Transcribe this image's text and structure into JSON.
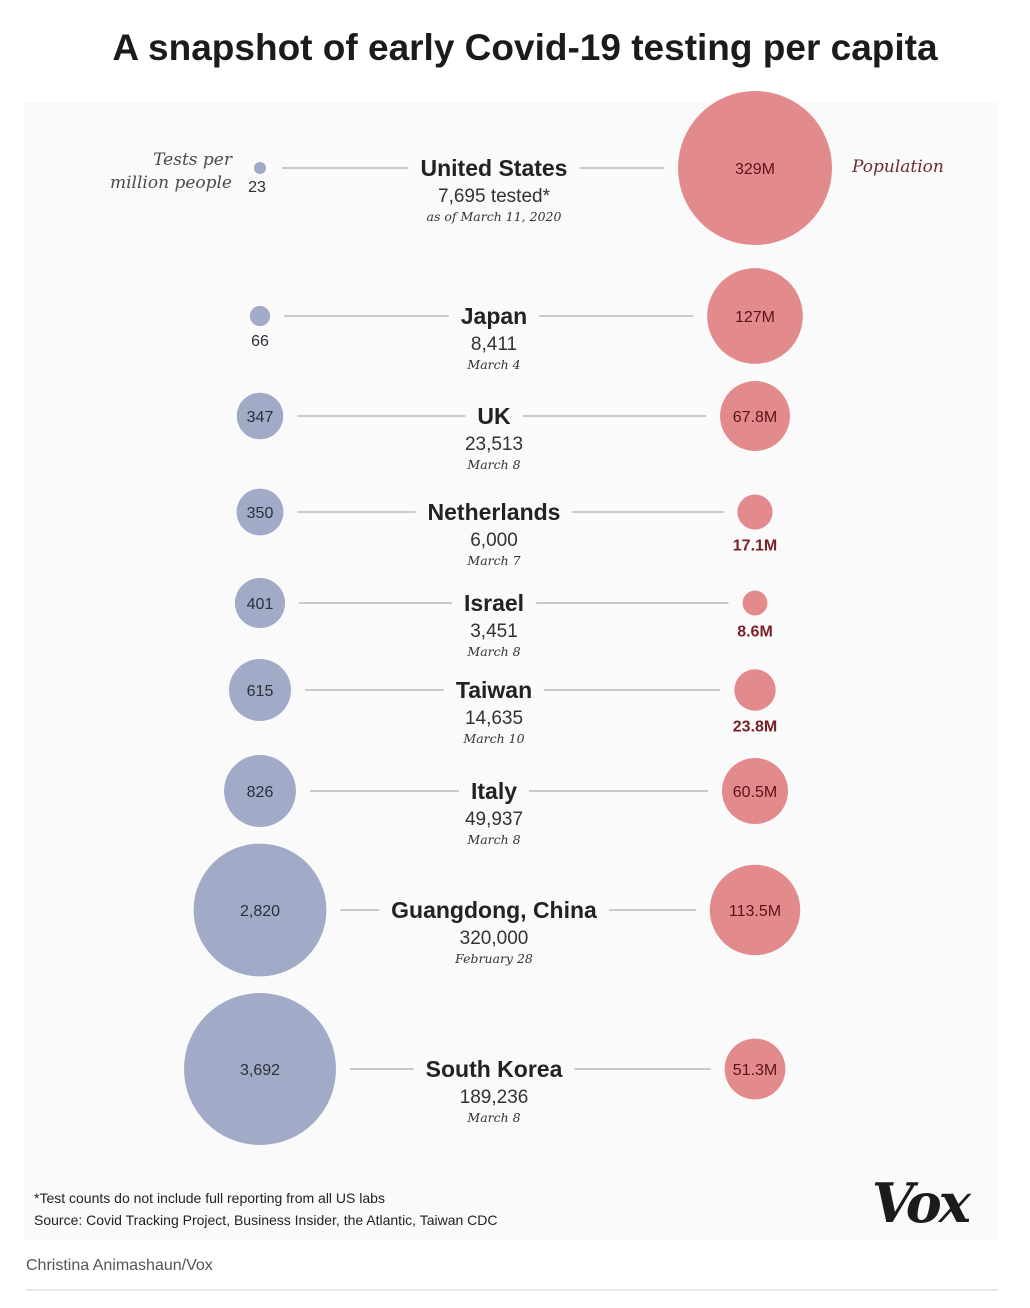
{
  "chart_data": {
    "type": "bubble",
    "title": "A snapshot of early Covid-19 testing per capita",
    "left_label": [
      "Tests per",
      "million people"
    ],
    "right_label": "Population",
    "rows": [
      {
        "name": "United States",
        "tested": "7,695 tested*",
        "date": "as of March 11, 2020",
        "tests_per_million": 23,
        "tpm_text": "23",
        "population_m": 329,
        "pop_text": "329M"
      },
      {
        "name": "Japan",
        "tested": "8,411",
        "date": "March 4",
        "tests_per_million": 66,
        "tpm_text": "66",
        "population_m": 127,
        "pop_text": "127M"
      },
      {
        "name": "UK",
        "tested": "23,513",
        "date": "March 8",
        "tests_per_million": 347,
        "tpm_text": "347",
        "population_m": 67.8,
        "pop_text": "67.8M"
      },
      {
        "name": "Netherlands",
        "tested": "6,000",
        "date": "March 7",
        "tests_per_million": 350,
        "tpm_text": "350",
        "population_m": 17.1,
        "pop_text": "17.1M"
      },
      {
        "name": "Israel",
        "tested": "3,451",
        "date": "March 8",
        "tests_per_million": 401,
        "tpm_text": "401",
        "population_m": 8.6,
        "pop_text": "8.6M"
      },
      {
        "name": "Taiwan",
        "tested": "14,635",
        "date": "March 10",
        "tests_per_million": 615,
        "tpm_text": "615",
        "population_m": 23.8,
        "pop_text": "23.8M"
      },
      {
        "name": "Italy",
        "tested": "49,937",
        "date": "March 8",
        "tests_per_million": 826,
        "tpm_text": "826",
        "population_m": 60.5,
        "pop_text": "60.5M"
      },
      {
        "name": "Guangdong, China",
        "tested": "320,000",
        "date": "February 28",
        "tests_per_million": 2820,
        "tpm_text": "2,820",
        "population_m": 113.5,
        "pop_text": "113.5M"
      },
      {
        "name": "South Korea",
        "tested": "189,236",
        "date": "March 8",
        "tests_per_million": 3692,
        "tpm_text": "3,692",
        "population_m": 51.3,
        "pop_text": "51.3M"
      }
    ],
    "footnote": "*Test counts do not include full reporting from all US labs",
    "source": "Source: Covid Tracking Project, Business Insider, the Atlantic, Taiwan CDC"
  },
  "logo": "Vox",
  "credit": "Christina Animashaun/Vox",
  "colors": {
    "tests_bubble": "#a1abc7",
    "population_bubble": "#e38a8d",
    "line": "#9a9a9a",
    "background_panel": "#fafafa"
  }
}
